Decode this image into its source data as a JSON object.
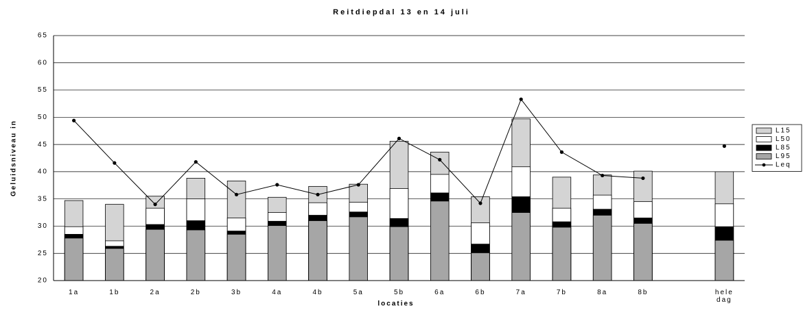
{
  "chart_data": {
    "type": "bar",
    "title": "Reitdiepdal 13 en 14 juli",
    "x_label": "locaties",
    "y_label": "Geluidsniveau in",
    "categories": [
      "1a",
      "1b",
      "2a",
      "2b",
      "3b",
      "4a",
      "4b",
      "5a",
      "5b",
      "6a",
      "6b",
      "7a",
      "7b",
      "8a",
      "8b",
      null,
      "hele dag"
    ],
    "ylim": [
      20,
      65
    ],
    "yticks": [
      20,
      25,
      30,
      35,
      40,
      45,
      50,
      55,
      60,
      65
    ],
    "grid": true,
    "legend": "right",
    "series": [
      {
        "name": "L15",
        "color": "#d4d4d4",
        "values": [
          34.7,
          34.0,
          35.5,
          38.8,
          38.3,
          35.3,
          37.3,
          37.7,
          45.6,
          43.6,
          35.4,
          49.7,
          39.0,
          39.4,
          40.1,
          null,
          40.0
        ]
      },
      {
        "name": "L50",
        "color": "#ffffff",
        "values": [
          29.9,
          27.3,
          33.3,
          35.0,
          31.5,
          32.5,
          34.3,
          34.4,
          36.9,
          39.5,
          30.6,
          40.9,
          33.3,
          35.7,
          34.5,
          null,
          34.1
        ]
      },
      {
        "name": "L85",
        "color": "#000000",
        "values": [
          28.5,
          26.3,
          30.3,
          31.0,
          29.1,
          30.9,
          32.0,
          32.6,
          31.4,
          36.1,
          26.7,
          35.4,
          30.8,
          33.1,
          31.5,
          null,
          29.9
        ]
      },
      {
        "name": "L95",
        "color": "#a6a6a6",
        "values": [
          27.8,
          25.9,
          29.4,
          29.3,
          28.5,
          30.1,
          31.0,
          31.7,
          29.9,
          34.6,
          25.1,
          32.5,
          29.8,
          32.0,
          30.5,
          null,
          27.4
        ]
      },
      {
        "name": "Leq",
        "type": "line",
        "color": "#000000",
        "values": [
          49.4,
          41.6,
          34.0,
          41.8,
          35.8,
          37.6,
          35.8,
          37.6,
          46.1,
          42.2,
          34.2,
          53.3,
          43.6,
          39.3,
          38.8,
          null,
          44.7
        ]
      }
    ]
  }
}
